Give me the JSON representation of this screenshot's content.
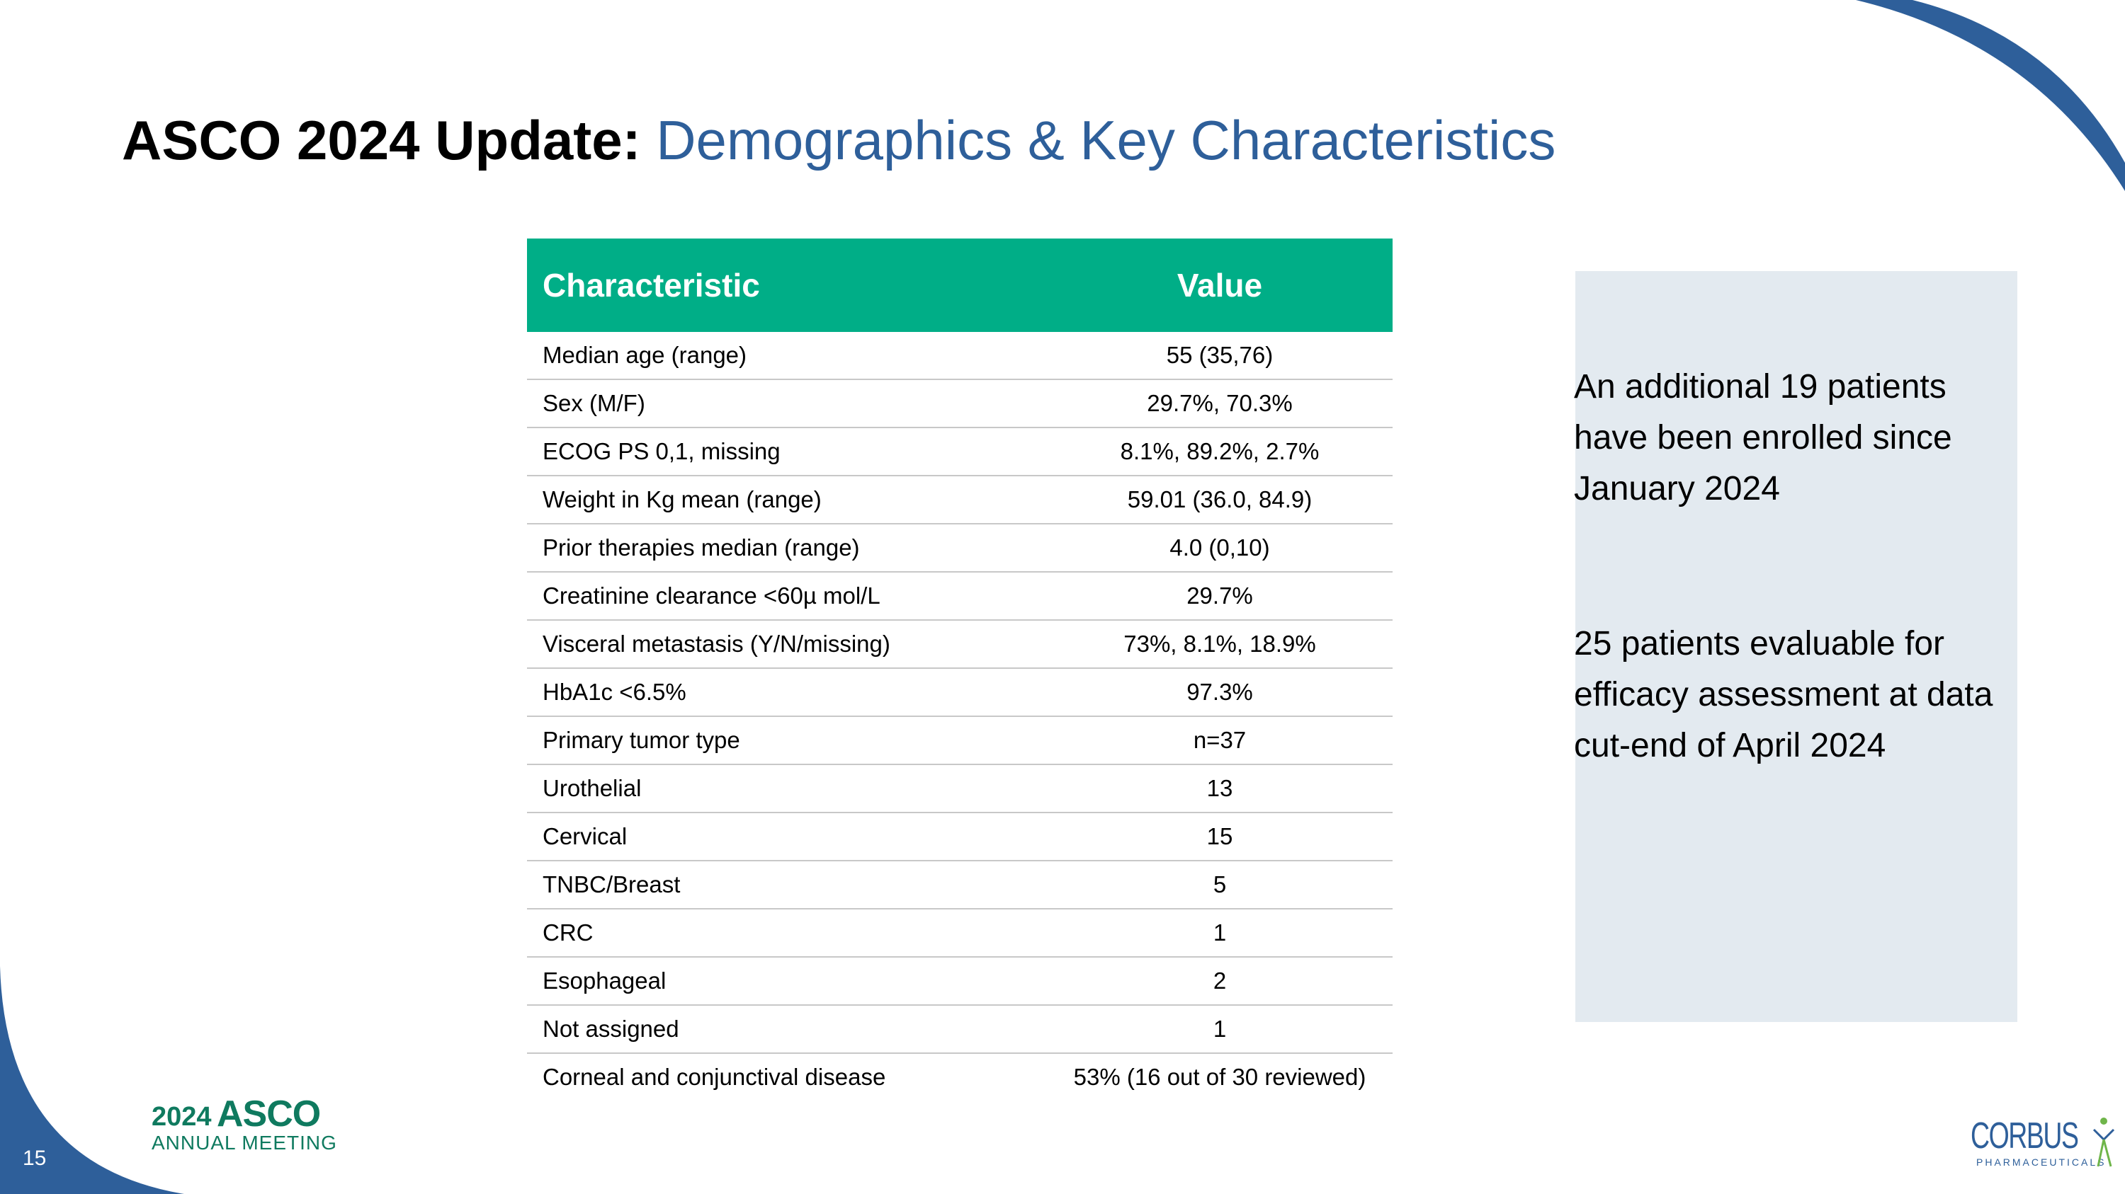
{
  "slide": {
    "title_bold": "ASCO 2024 Update:",
    "title_accent": "Demographics & Key Characteristics",
    "page_number": "15"
  },
  "table": {
    "headers": [
      "Characteristic",
      "Value"
    ],
    "rows": [
      [
        "Median age (range)",
        "55 (35,76)"
      ],
      [
        "Sex (M/F)",
        "29.7%, 70.3%"
      ],
      [
        "ECOG PS  0,1, missing",
        "8.1%, 89.2%, 2.7%"
      ],
      [
        "Weight in Kg mean (range)",
        "59.01 (36.0, 84.9)"
      ],
      [
        "Prior therapies median (range)",
        "4.0 (0,10)"
      ],
      [
        "Creatinine clearance <60µ mol/L",
        "29.7%"
      ],
      [
        "Visceral metastasis (Y/N/missing)",
        "73%, 8.1%, 18.9%"
      ],
      [
        "HbA1c <6.5%",
        "97.3%"
      ],
      [
        "Primary tumor type",
        "n=37"
      ],
      [
        "Urothelial",
        "13"
      ],
      [
        "Cervical",
        "15"
      ],
      [
        "TNBC/Breast",
        "5"
      ],
      [
        "CRC",
        "1"
      ],
      [
        "Esophageal",
        "2"
      ],
      [
        "Not assigned",
        "1"
      ],
      [
        "Corneal and conjunctival disease",
        "53% (16 out of 30 reviewed)"
      ]
    ]
  },
  "side_panel": {
    "note1": "An additional 19 patients have been enrolled since January 2024",
    "note2": "25 patients evaluable for efficacy assessment at data cut-end of April 2024"
  },
  "logos": {
    "asco_year": "2024",
    "asco_name": "ASCO",
    "asco_sub": "ANNUAL MEETING",
    "corbus_name": "CORBUS",
    "corbus_sub": "PHARMACEUTICALS"
  },
  "colors": {
    "header_green": "#00ae87",
    "accent_blue": "#2e5f9a",
    "panel_bg": "#e3eaf0",
    "asco_green": "#0f7a5f"
  }
}
